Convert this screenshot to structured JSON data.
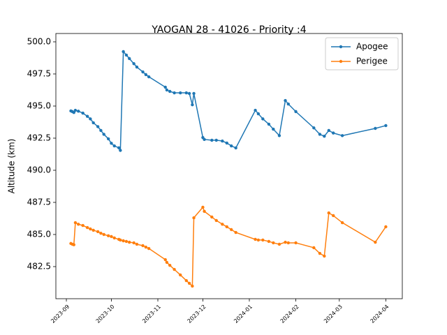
{
  "chart_data": {
    "type": "line",
    "title": "YAOGAN 28 - 41026 - Priority :4",
    "ylabel": "Altitude (km)",
    "x": [
      "2023-09-04",
      "2023-09-05",
      "2023-09-06",
      "2023-09-07",
      "2023-09-09",
      "2023-09-12",
      "2023-09-15",
      "2023-09-17",
      "2023-09-19",
      "2023-09-22",
      "2023-09-24",
      "2023-09-26",
      "2023-09-29",
      "2023-10-01",
      "2023-10-03",
      "2023-10-06",
      "2023-10-07",
      "2023-10-09",
      "2023-10-11",
      "2023-10-13",
      "2023-10-16",
      "2023-10-18",
      "2023-10-22",
      "2023-10-24",
      "2023-10-26",
      "2023-11-06",
      "2023-11-07",
      "2023-11-09",
      "2023-11-12",
      "2023-11-16",
      "2023-11-20",
      "2023-11-22",
      "2023-11-24",
      "2023-11-25",
      "2023-12-01",
      "2023-12-02",
      "2023-12-07",
      "2023-12-10",
      "2023-12-14",
      "2023-12-17",
      "2023-12-20",
      "2023-12-23",
      "2024-01-05",
      "2024-01-07",
      "2024-01-10",
      "2024-01-14",
      "2024-01-17",
      "2024-01-21",
      "2024-01-25",
      "2024-01-27",
      "2024-02-01",
      "2024-02-13",
      "2024-02-17",
      "2024-02-20",
      "2024-02-23",
      "2024-02-26",
      "2024-03-03",
      "2024-03-25",
      "2024-04-01"
    ],
    "series": [
      {
        "name": "Apogee",
        "color": "#1f77b4",
        "values": [
          494.62,
          494.57,
          494.5,
          494.67,
          494.6,
          494.45,
          494.2,
          494.0,
          493.7,
          493.4,
          493.1,
          492.8,
          492.45,
          492.1,
          491.9,
          491.75,
          491.55,
          499.24,
          498.97,
          498.7,
          498.3,
          498.04,
          497.66,
          497.45,
          497.28,
          496.47,
          496.25,
          496.14,
          496.03,
          496.03,
          496.03,
          495.98,
          495.1,
          495.98,
          492.55,
          492.4,
          492.34,
          492.34,
          492.28,
          492.12,
          491.9,
          491.74,
          494.67,
          494.4,
          494.0,
          493.59,
          493.2,
          492.7,
          495.43,
          495.16,
          494.57,
          493.3,
          492.8,
          492.65,
          493.1,
          492.9,
          492.7,
          493.26,
          493.48
        ]
      },
      {
        "name": "Perigee",
        "color": "#ff7f0e",
        "values": [
          484.3,
          484.24,
          484.2,
          485.92,
          485.8,
          485.7,
          485.54,
          485.43,
          485.33,
          485.22,
          485.1,
          485.0,
          484.9,
          484.84,
          484.73,
          484.62,
          484.57,
          484.51,
          484.46,
          484.4,
          484.35,
          484.24,
          484.13,
          484.02,
          483.91,
          483.04,
          482.83,
          482.6,
          482.28,
          481.85,
          481.41,
          481.2,
          480.98,
          486.3,
          487.12,
          486.8,
          486.36,
          486.09,
          485.8,
          485.6,
          485.38,
          485.16,
          484.62,
          484.57,
          484.57,
          484.46,
          484.35,
          484.24,
          484.4,
          484.35,
          484.35,
          483.97,
          483.53,
          483.32,
          486.68,
          486.47,
          485.92,
          484.4,
          485.6
        ]
      }
    ],
    "xlim": [
      "2023-08-25",
      "2024-04-12"
    ],
    "xticks": [
      {
        "value": "2023-09-01",
        "label": "2023-09"
      },
      {
        "value": "2023-10-01",
        "label": "2023-10"
      },
      {
        "value": "2023-11-01",
        "label": "2023-11"
      },
      {
        "value": "2023-12-01",
        "label": "2023-12"
      },
      {
        "value": "2024-01-01",
        "label": "2024-01"
      },
      {
        "value": "2024-02-01",
        "label": "2024-02"
      },
      {
        "value": "2024-03-01",
        "label": "2024-03"
      },
      {
        "value": "2024-04-01",
        "label": "2024-04"
      }
    ],
    "ylim": [
      480.0,
      500.65
    ],
    "yticks": [
      482.5,
      {
        "value": 485,
        "label": "485.0"
      },
      487.5,
      {
        "value": 490,
        "label": "490.0"
      },
      492.5,
      {
        "value": 495,
        "label": "495.0"
      },
      497.5,
      {
        "value": 500,
        "label": "500.0"
      }
    ],
    "legend": "upper right",
    "grid": false
  }
}
